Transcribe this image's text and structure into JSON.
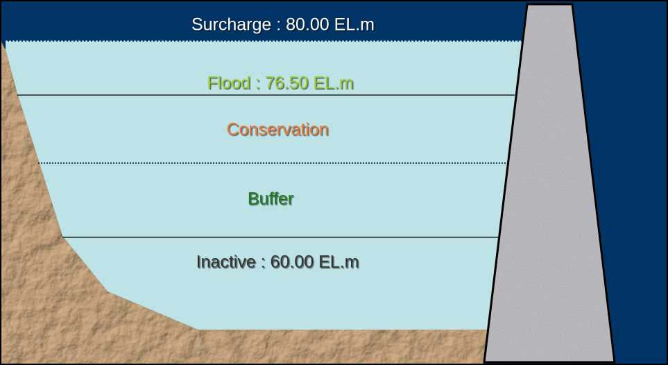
{
  "zones": [
    {
      "label": "Surcharge : 80.00 EL.m"
    },
    {
      "label": "Flood : 76.50 EL.m"
    },
    {
      "label": "Conservation"
    },
    {
      "label": "Buffer"
    },
    {
      "label": "Inactive : 60.00 EL.m"
    }
  ]
}
